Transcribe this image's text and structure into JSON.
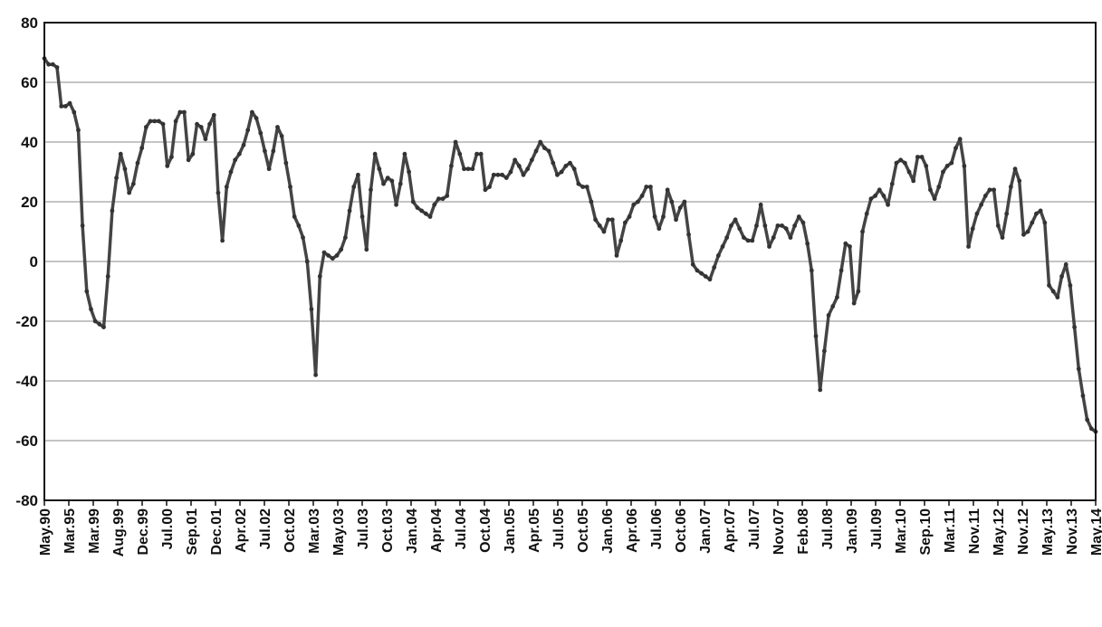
{
  "chart_data": {
    "type": "line",
    "title": "",
    "xlabel": "",
    "ylabel": "",
    "ylim": [
      -80,
      80
    ],
    "yticks": [
      80,
      60,
      40,
      20,
      0,
      -20,
      -40,
      -60,
      -80
    ],
    "grid": true,
    "legend": "none",
    "line_color": "#444444",
    "grid_color": "#a0a0a0",
    "x_tick_labels": [
      "May.90",
      "Mar.95",
      "Mar.99",
      "Aug.99",
      "Dec.99",
      "Jul.00",
      "Sep.01",
      "Dec.01",
      "Apr.02",
      "Jul.02",
      "Oct.02",
      "Mar.03",
      "May.03",
      "Jul.03",
      "Oct.03",
      "Jan.04",
      "Apr.04",
      "Jul.04",
      "Oct.04",
      "Jan.05",
      "Apr.05",
      "Jul.05",
      "Oct.05",
      "Jan.06",
      "Apr.06",
      "Jul.06",
      "Oct.06",
      "Jan.07",
      "Apr.07",
      "Jul.07",
      "Nov.07",
      "Feb.08",
      "Jul.08",
      "Jan.09",
      "Jul.09",
      "Mar.10",
      "Sep.10",
      "Mar.11",
      "Nov.11",
      "May.12",
      "Nov.12",
      "May.13",
      "Nov.13",
      "May.14"
    ],
    "series": [
      {
        "values": [
          68,
          66,
          66,
          65,
          52,
          52,
          53,
          50,
          44,
          12,
          -10,
          -16,
          -20,
          -21,
          -22,
          -5,
          17,
          28,
          36,
          31,
          23,
          26,
          33,
          38,
          45,
          47,
          47,
          47,
          46,
          32,
          35,
          47,
          50,
          50,
          34,
          36,
          46,
          45,
          41,
          46,
          49,
          23,
          7,
          25,
          30,
          34,
          36,
          39,
          44,
          50,
          48,
          43,
          37,
          31,
          37,
          45,
          42,
          33,
          25,
          15,
          12,
          8,
          0,
          -16,
          -38,
          -5,
          3,
          2,
          1,
          2,
          4,
          8,
          17,
          25,
          29,
          15,
          4,
          24,
          36,
          31,
          26,
          28,
          27,
          19,
          26,
          36,
          30,
          20,
          18,
          17,
          16,
          15,
          19,
          21,
          21,
          22,
          32,
          40,
          36,
          31,
          31,
          31,
          36,
          36,
          24,
          25,
          29,
          29,
          29,
          28,
          30,
          34,
          32,
          29,
          31,
          34,
          37,
          40,
          38,
          37,
          33,
          29,
          30,
          32,
          33,
          31,
          26,
          25,
          25,
          20,
          14,
          12,
          10,
          14,
          14,
          2,
          7,
          13,
          15,
          19,
          20,
          22,
          25,
          25,
          15,
          11,
          15,
          24,
          20,
          14,
          18,
          20,
          9,
          -1,
          -3,
          -4,
          -5,
          -6,
          -2,
          2,
          5,
          8,
          12,
          14,
          11,
          8,
          7,
          7,
          12,
          19,
          12,
          5,
          8,
          12,
          12,
          11,
          8,
          12,
          15,
          13,
          6,
          -3,
          -25,
          -43,
          -30,
          -18,
          -15,
          -12,
          -3,
          6,
          5,
          -14,
          -10,
          10,
          16,
          21,
          22,
          24,
          22,
          19,
          26,
          33,
          34,
          33,
          30,
          27,
          35,
          35,
          32,
          24,
          21,
          25,
          30,
          32,
          33,
          38,
          41,
          32,
          5,
          11,
          16,
          19,
          22,
          24,
          24,
          12,
          8,
          16,
          25,
          31,
          27,
          9,
          10,
          13,
          16,
          17,
          13,
          -8,
          -10,
          -12,
          -5,
          -1,
          -8,
          -22,
          -36,
          -45,
          -53,
          -56,
          -57
        ]
      }
    ]
  }
}
